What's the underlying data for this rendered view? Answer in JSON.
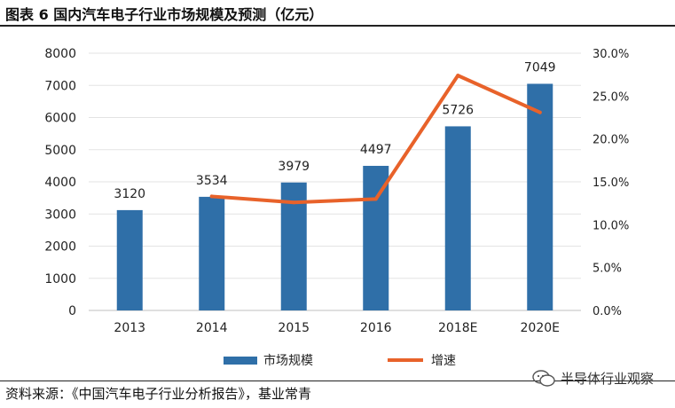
{
  "title": "图表 6 国内汽车电子行业市场规模及预测（亿元）",
  "source": "资料来源：《中国汽车电子行业分析报告》，基业常青",
  "watermark_text": "半导体行业观察",
  "watermark_icon": "wechat-bubble-icon",
  "colors": {
    "bar": "#2f6fa8",
    "line": "#e8622a"
  },
  "chart_data": {
    "type": "bar",
    "categories": [
      "2013",
      "2014",
      "2015",
      "2016",
      "2018E",
      "2020E"
    ],
    "series": [
      {
        "name": "市场规模",
        "type": "bar",
        "axis": "left",
        "values": [
          3120,
          3534,
          3979,
          4497,
          5726,
          7049
        ]
      },
      {
        "name": "增速",
        "type": "line",
        "axis": "right",
        "values": [
          null,
          13.3,
          12.6,
          13.0,
          27.4,
          23.1
        ]
      }
    ],
    "data_labels": [
      "3120",
      "3534",
      "3979",
      "4497",
      "5726",
      "7049"
    ],
    "y_left": {
      "ylim": [
        0,
        8000
      ],
      "ticks": [
        "0",
        "1000",
        "2000",
        "3000",
        "4000",
        "5000",
        "6000",
        "7000",
        "8000"
      ]
    },
    "y_right": {
      "ylim": [
        0,
        30
      ],
      "ticks": [
        "0.0%",
        "5.0%",
        "10.0%",
        "15.0%",
        "20.0%",
        "25.0%",
        "30.0%"
      ]
    },
    "grid": true,
    "legend_position": "bottom"
  }
}
